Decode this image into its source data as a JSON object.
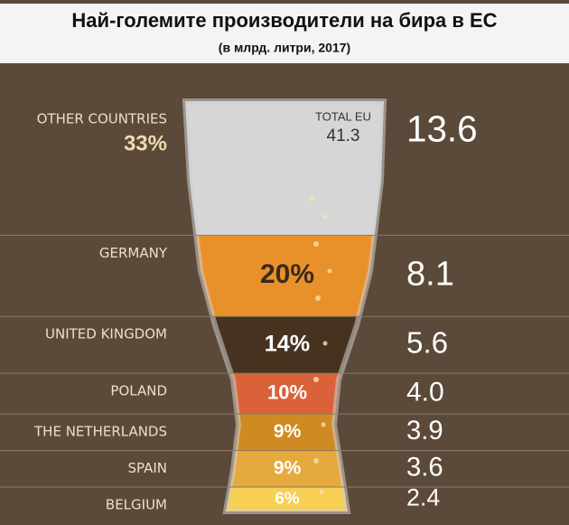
{
  "chart_data": {
    "type": "glass",
    "title": "Най-големите производители на бира в ЕС",
    "subtitle": "(в млрд. литри, 2017)",
    "total_label": "TOTAL EU",
    "total": 41.3,
    "categories": [
      "OTHER COUNTRIES",
      "GERMANY",
      "UNITED KINGDOM",
      "POLAND",
      "THE NETHERLANDS",
      "SPAIN",
      "BELGIUM"
    ],
    "colors": [
      "#d6d6d6",
      "#e8912a",
      "#47321f",
      "#d9623a",
      "#cf8a22",
      "#e6a93e",
      "#f7cf52"
    ],
    "shares": {
      "values": [
        33,
        20,
        14,
        10,
        9,
        9,
        6
      ],
      "value_labels": [
        "33%",
        "20%",
        "14%",
        "10%",
        "9%",
        "9%",
        "6%"
      ]
    },
    "volumes": {
      "values": [
        13.6,
        8.1,
        5.6,
        4.0,
        3.9,
        3.6,
        2.4
      ],
      "value_labels": [
        "13.6",
        "8.1",
        "5.6",
        "4.0",
        "3.9",
        "3.6",
        "2.4"
      ]
    }
  }
}
